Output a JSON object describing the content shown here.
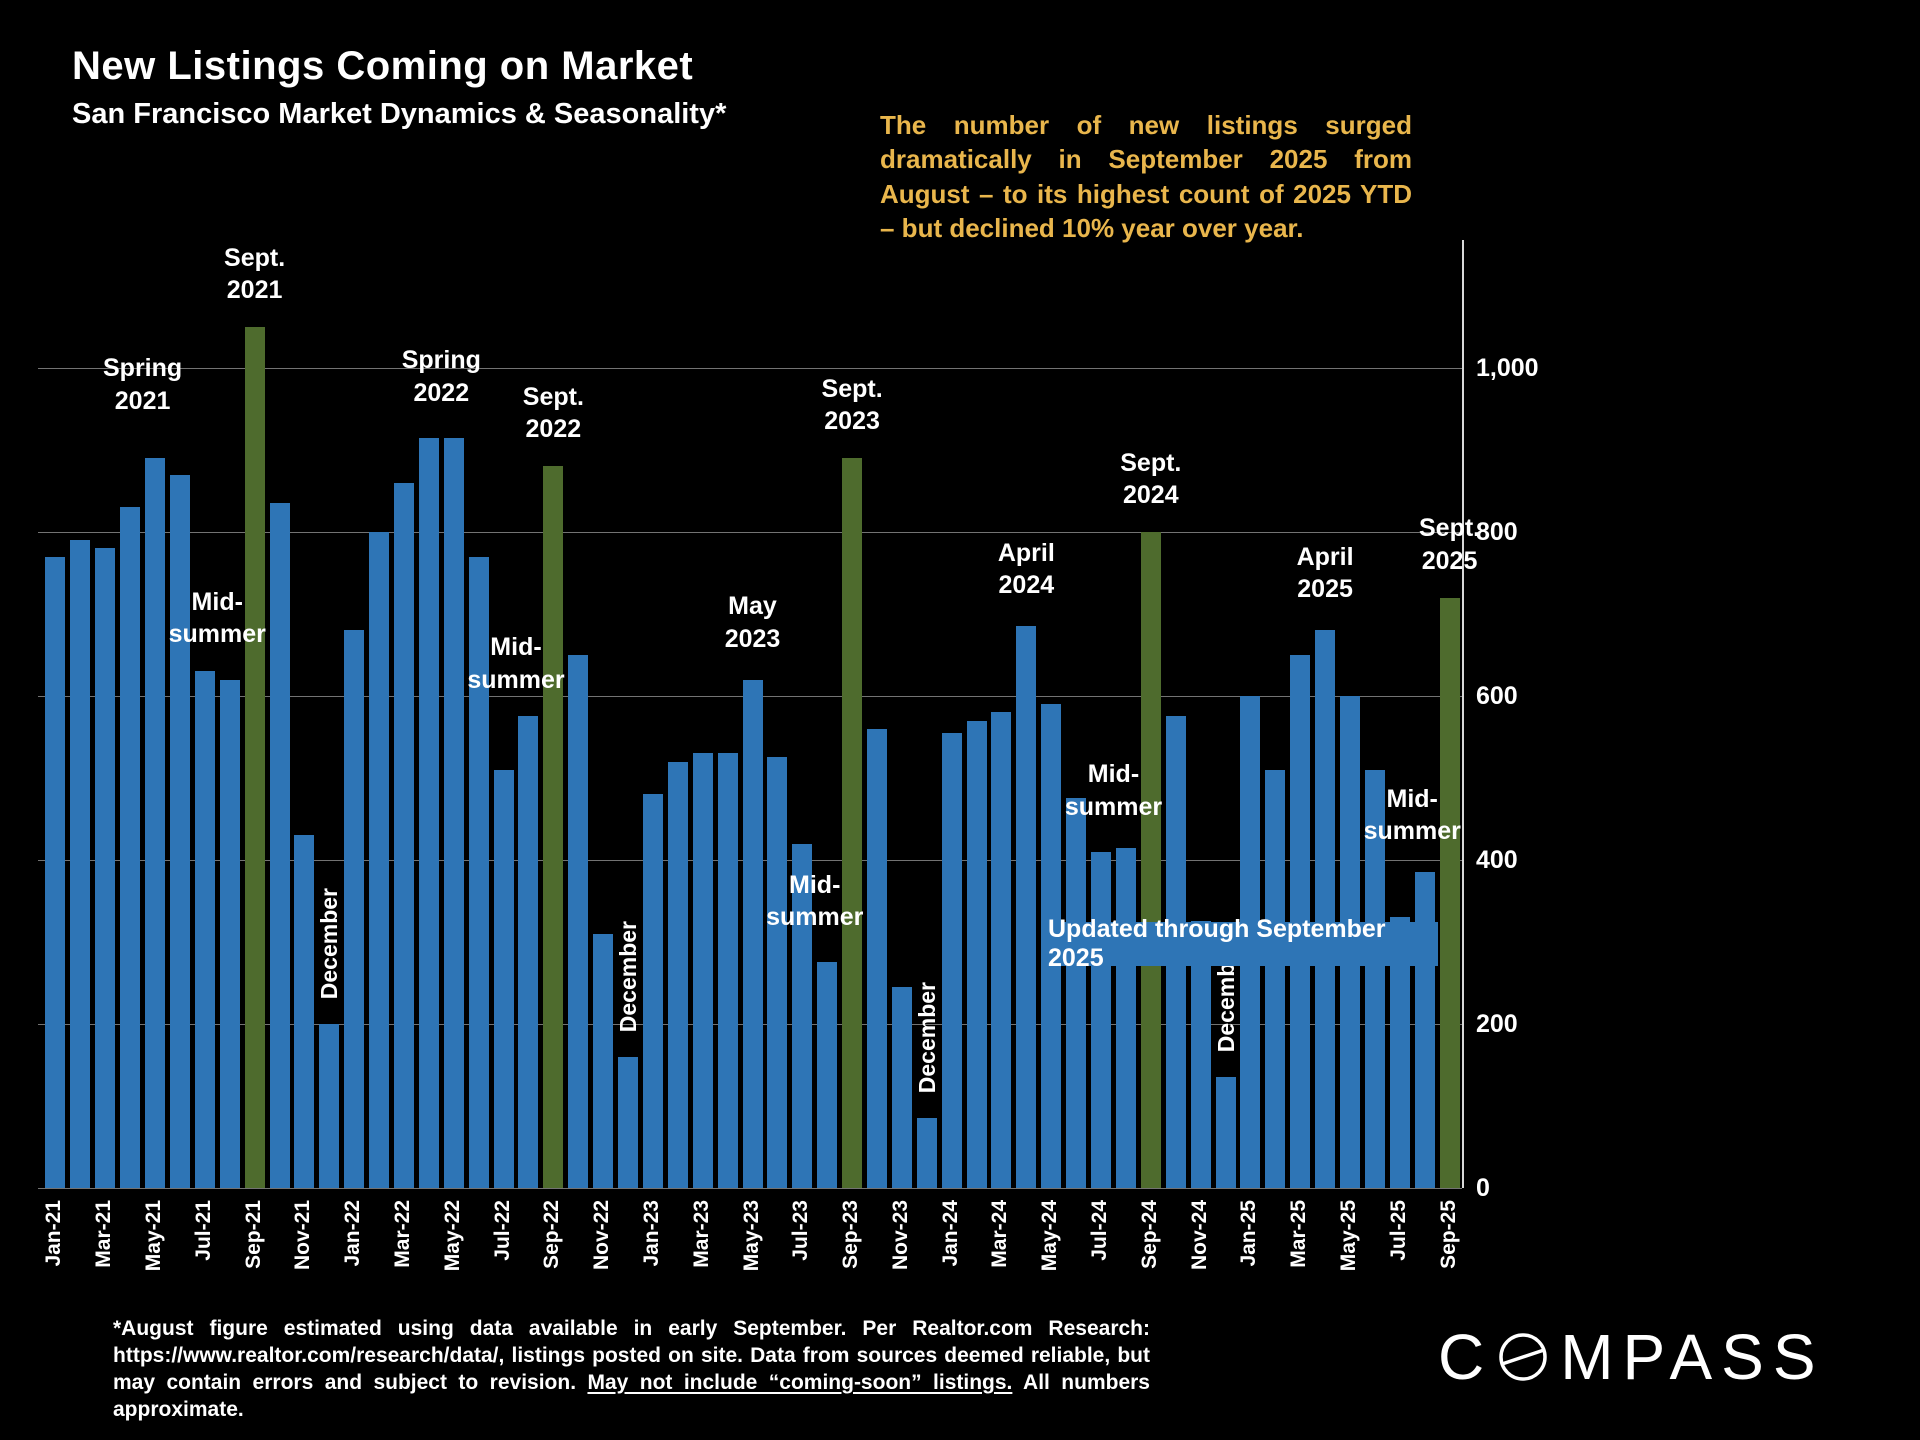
{
  "header": {
    "title": "New Listings Coming on Market",
    "subtitle": "San Francisco Market Dynamics & Seasonality*"
  },
  "callout": {
    "text": "The number of new listings surged dramatically in September 2025 from August – to its highest count of 2025 YTD – but declined 10% year over year.",
    "color": "#E9B64C"
  },
  "banner": {
    "label": "Updated through September 2025",
    "bg": "#2E75B6"
  },
  "footnote": {
    "pre": "*August figure estimated using data available in early September. Per Realtor.com Research: https://www.realtor.com/research/data/, listings posted on site. Data from sources deemed reliable, but may contain errors and subject to revision. ",
    "underlined": "May not include “coming-soon” listings.",
    "post": " All numbers approximate."
  },
  "logo": {
    "first": "C",
    "rest": "MPASS"
  },
  "chart_data": {
    "type": "bar",
    "title": "New Listings Coming on Market",
    "subtitle": "San Francisco Market Dynamics & Seasonality*",
    "xlabel": "",
    "ylabel": "",
    "ylim": [
      0,
      1100
    ],
    "yticks": [
      0,
      200,
      400,
      600,
      800,
      1000
    ],
    "ytick_labels": [
      "0",
      "200",
      "400",
      "600",
      "800",
      "1,000"
    ],
    "grid": true,
    "legend": false,
    "x_tick_every": 2,
    "x_tick_rotation": 90,
    "bar_color": "#2E75B6",
    "highlight_color": "#4E6B2D",
    "highlight_indices": [
      8,
      20,
      32,
      44,
      56
    ],
    "categories": [
      "Jan-21",
      "Feb-21",
      "Mar-21",
      "Apr-21",
      "May-21",
      "Jun-21",
      "Jul-21",
      "Aug-21",
      "Sep-21",
      "Oct-21",
      "Nov-21",
      "Dec-21",
      "Jan-22",
      "Feb-22",
      "Mar-22",
      "Apr-22",
      "May-22",
      "Jun-22",
      "Jul-22",
      "Aug-22",
      "Sep-22",
      "Oct-22",
      "Nov-22",
      "Dec-22",
      "Jan-23",
      "Feb-23",
      "Mar-23",
      "Apr-23",
      "May-23",
      "Jun-23",
      "Jul-23",
      "Aug-23",
      "Sep-23",
      "Oct-23",
      "Nov-23",
      "Dec-23",
      "Jan-24",
      "Feb-24",
      "Mar-24",
      "Apr-24",
      "May-24",
      "Jun-24",
      "Jul-24",
      "Aug-24",
      "Sep-24",
      "Oct-24",
      "Nov-24",
      "Dec-24",
      "Jan-25",
      "Feb-25",
      "Mar-25",
      "Apr-25",
      "May-25",
      "Jun-25",
      "Jul-25",
      "Aug-25",
      "Sep-25"
    ],
    "values": [
      770,
      790,
      780,
      830,
      890,
      870,
      630,
      620,
      1050,
      835,
      430,
      200,
      680,
      800,
      860,
      915,
      915,
      770,
      510,
      575,
      880,
      650,
      310,
      160,
      480,
      520,
      530,
      530,
      620,
      525,
      420,
      275,
      890,
      560,
      245,
      85,
      555,
      570,
      580,
      685,
      590,
      475,
      410,
      415,
      800,
      575,
      325,
      135,
      600,
      510,
      650,
      680,
      600,
      510,
      330,
      385,
      720
    ],
    "annotations": [
      {
        "id": "spring-2021",
        "lines": [
          "Spring",
          "2021"
        ],
        "month": 3.5,
        "y": 940,
        "rotated": false
      },
      {
        "id": "sept-2021",
        "lines": [
          "Sept.",
          "2021"
        ],
        "month": 8,
        "y": 1075,
        "rotated": false
      },
      {
        "id": "mid-summer-2021",
        "lines": [
          "Mid-",
          "summer"
        ],
        "month": 6.5,
        "y": 655,
        "rotated": false
      },
      {
        "id": "december-2021",
        "lines": [
          "December"
        ],
        "month": 11,
        "y": 230,
        "rotated": true
      },
      {
        "id": "spring-2022",
        "lines": [
          "Spring",
          "2022"
        ],
        "month": 15.5,
        "y": 950,
        "rotated": false
      },
      {
        "id": "sept-2022",
        "lines": [
          "Sept.",
          "2022"
        ],
        "month": 20,
        "y": 905,
        "rotated": false
      },
      {
        "id": "mid-summer-2022",
        "lines": [
          "Mid-",
          "summer"
        ],
        "month": 18.5,
        "y": 600,
        "rotated": false
      },
      {
        "id": "december-2022",
        "lines": [
          "December"
        ],
        "month": 23,
        "y": 190,
        "rotated": true
      },
      {
        "id": "may-2023",
        "lines": [
          "May",
          "2023"
        ],
        "month": 28,
        "y": 650,
        "rotated": false
      },
      {
        "id": "mid-summer-2023",
        "lines": [
          "Mid-",
          "summer"
        ],
        "month": 30.5,
        "y": 310,
        "rotated": false
      },
      {
        "id": "sept-2023",
        "lines": [
          "Sept.",
          "2023"
        ],
        "month": 32,
        "y": 915,
        "rotated": false
      },
      {
        "id": "december-2023",
        "lines": [
          "December"
        ],
        "month": 35,
        "y": 115,
        "rotated": true
      },
      {
        "id": "april-2024",
        "lines": [
          "April",
          "2024"
        ],
        "month": 39,
        "y": 715,
        "rotated": false
      },
      {
        "id": "mid-summer-2024",
        "lines": [
          "Mid-",
          "summer"
        ],
        "month": 42.5,
        "y": 445,
        "rotated": false
      },
      {
        "id": "sept-2024",
        "lines": [
          "Sept.",
          "2024"
        ],
        "month": 44,
        "y": 825,
        "rotated": false
      },
      {
        "id": "december-2024",
        "lines": [
          "December"
        ],
        "month": 47,
        "y": 165,
        "rotated": true
      },
      {
        "id": "april-2025",
        "lines": [
          "April",
          "2025"
        ],
        "month": 51,
        "y": 710,
        "rotated": false
      },
      {
        "id": "mid-summer-2025",
        "lines": [
          "Mid-",
          "summer"
        ],
        "month": 54.5,
        "y": 415,
        "rotated": false
      },
      {
        "id": "sept-2025",
        "lines": [
          "Sept.",
          "2025"
        ],
        "month": 56,
        "y": 745,
        "rotated": false
      }
    ]
  }
}
